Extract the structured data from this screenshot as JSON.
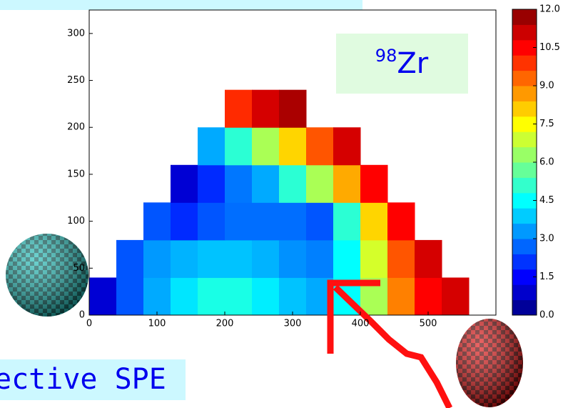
{
  "chart_data": {
    "type": "contour",
    "isotope": {
      "mass": "98",
      "symbol": "Zr"
    },
    "caption": "ective SPE",
    "x": [
      20,
      60,
      100,
      140,
      180,
      220,
      260,
      300,
      340,
      380,
      420,
      460,
      500,
      540
    ],
    "y": [
      20,
      60,
      100,
      140,
      180,
      220
    ],
    "z": [
      [
        1,
        2.5,
        3.5,
        4.2,
        4.8,
        4.8,
        4.3,
        3.8,
        3.5,
        4.5,
        6.5,
        9,
        10.5,
        11
      ],
      [
        null,
        2.5,
        3.3,
        3.6,
        3.8,
        3.8,
        3.6,
        3.2,
        3.0,
        4.5,
        7,
        9.5,
        11,
        null
      ],
      [
        null,
        null,
        2.5,
        2,
        2.5,
        2.8,
        2.8,
        2.8,
        2.5,
        5,
        8,
        10.5,
        null,
        null
      ],
      [
        null,
        null,
        null,
        1,
        2,
        2.9,
        3.5,
        5,
        6.5,
        8.5,
        10.5,
        null,
        null,
        null
      ],
      [
        null,
        null,
        null,
        null,
        3.5,
        5,
        6.5,
        8,
        9.5,
        11,
        null,
        null,
        null,
        null
      ],
      [
        null,
        null,
        null,
        null,
        null,
        10,
        11,
        11.5,
        null,
        null,
        null,
        null,
        null,
        null
      ]
    ],
    "xlim": [
      0,
      600
    ],
    "ylim": [
      0,
      325
    ],
    "xticks": [
      0,
      100,
      200,
      300,
      400,
      500
    ],
    "yticks": [
      0,
      50,
      100,
      150,
      200,
      250,
      300
    ],
    "colorbar": {
      "lim": [
        0,
        12
      ],
      "ticks": [
        {
          "value": 0,
          "label": "0.0"
        },
        1.5,
        {
          "value": 3,
          "label": "3.0"
        },
        4.5,
        {
          "value": 6,
          "label": "6.0"
        },
        7.5,
        {
          "value": 9,
          "label": "9.0"
        },
        10.5,
        {
          "value": 12,
          "label": "12.0"
        }
      ]
    }
  }
}
